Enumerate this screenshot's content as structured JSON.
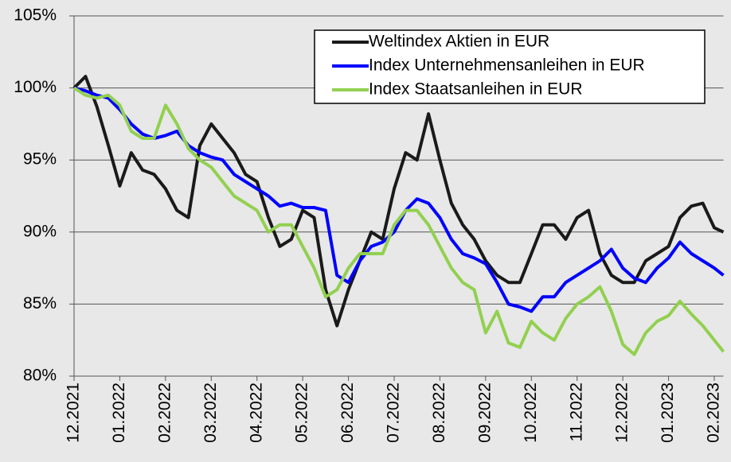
{
  "chart_data": {
    "type": "line",
    "x": [
      0,
      0.25,
      0.5,
      0.75,
      1,
      1.25,
      1.5,
      1.75,
      2,
      2.25,
      2.5,
      2.75,
      3,
      3.25,
      3.5,
      3.75,
      4,
      4.25,
      4.5,
      4.75,
      5,
      5.25,
      5.5,
      5.75,
      6,
      6.25,
      6.5,
      6.75,
      7,
      7.25,
      7.5,
      7.75,
      8,
      8.25,
      8.5,
      8.75,
      9,
      9.25,
      9.5,
      9.75,
      10,
      10.25,
      10.5,
      10.75,
      11,
      11.25,
      11.5,
      11.75,
      12,
      12.25,
      12.5,
      12.75,
      13,
      13.25,
      13.5,
      13.75,
      14,
      14.2
    ],
    "series": [
      {
        "name": "Weltindex Aktien in EUR",
        "color": "#1a1a1a",
        "values": [
          100,
          100.8,
          98.7,
          96,
          93.2,
          95.5,
          94.3,
          94,
          93,
          91.5,
          91,
          96,
          97.5,
          96.5,
          95.5,
          94,
          93.5,
          91,
          89,
          89.5,
          91.5,
          91,
          86,
          83.5,
          86,
          88,
          90,
          89.5,
          93,
          95.5,
          95,
          98.2,
          95,
          92,
          90.5,
          89.5,
          88,
          87,
          86.5,
          86.5,
          88.5,
          90.5,
          90.5,
          89.5,
          91,
          91.5,
          88.5,
          87,
          86.5,
          86.5,
          88,
          88.5,
          89,
          91,
          91.8,
          92,
          90.3,
          90
        ]
      },
      {
        "name": "Index Unternehmensanleihen in EUR",
        "color": "#0000ff",
        "values": [
          100,
          99.8,
          99.5,
          99.3,
          98.5,
          97.5,
          96.8,
          96.5,
          96.7,
          97,
          96,
          95.5,
          95.2,
          95,
          94,
          93.5,
          93,
          92.5,
          91.8,
          92,
          91.7,
          91.7,
          91.5,
          87,
          86.5,
          88,
          89,
          89.3,
          90,
          91.5,
          92.3,
          92,
          91,
          89.5,
          88.5,
          88.2,
          87.8,
          86.5,
          85,
          84.8,
          84.5,
          85.5,
          85.5,
          86.5,
          87,
          87.5,
          88,
          88.8,
          87.5,
          86.8,
          86.5,
          87.5,
          88.2,
          89.3,
          88.5,
          88,
          87.5,
          87
        ]
      },
      {
        "name": "Index Staatsanleihen in EUR",
        "color": "#92d050",
        "values": [
          100,
          99.5,
          99.3,
          99.5,
          98.8,
          97,
          96.5,
          96.5,
          98.8,
          97.5,
          95.8,
          95,
          94.5,
          93.5,
          92.5,
          92,
          91.5,
          90,
          90.5,
          90.5,
          89,
          87.5,
          85.5,
          86,
          87.5,
          88.5,
          88.5,
          88.5,
          90.5,
          91.5,
          91.5,
          90.5,
          89,
          87.5,
          86.5,
          86,
          83,
          84.5,
          82.3,
          82,
          83.8,
          83,
          82.5,
          84,
          85,
          85.5,
          86.2,
          84.5,
          82.2,
          81.5,
          83,
          83.8,
          84.2,
          85.2,
          84.3,
          83.5,
          82.5,
          81.7
        ]
      }
    ],
    "xlim": [
      0,
      14.2
    ],
    "xticks": [
      {
        "value": 0,
        "label": "12.2021"
      },
      {
        "value": 1,
        "label": "01.2022"
      },
      {
        "value": 2,
        "label": "02.2022"
      },
      {
        "value": 3,
        "label": "03.2022"
      },
      {
        "value": 4,
        "label": "04.2022"
      },
      {
        "value": 5,
        "label": "05.2022"
      },
      {
        "value": 6,
        "label": "06.2022"
      },
      {
        "value": 7,
        "label": "07.2022"
      },
      {
        "value": 8,
        "label": "08.2022"
      },
      {
        "value": 9,
        "label": "09.2022"
      },
      {
        "value": 10,
        "label": "10.2022"
      },
      {
        "value": 11,
        "label": "11.2022"
      },
      {
        "value": 12,
        "label": "12.2022"
      },
      {
        "value": 13,
        "label": "01.2023"
      },
      {
        "value": 14,
        "label": "02.2023"
      }
    ],
    "ylim": [
      80,
      105
    ],
    "yticks": [
      {
        "value": 80,
        "label": "80%"
      },
      {
        "value": 85,
        "label": "85%"
      },
      {
        "value": 90,
        "label": "90%"
      },
      {
        "value": 95,
        "label": "95%"
      },
      {
        "value": 100,
        "label": "100%"
      },
      {
        "value": 105,
        "label": "105%"
      }
    ],
    "grid": true,
    "legend": "upper right"
  }
}
